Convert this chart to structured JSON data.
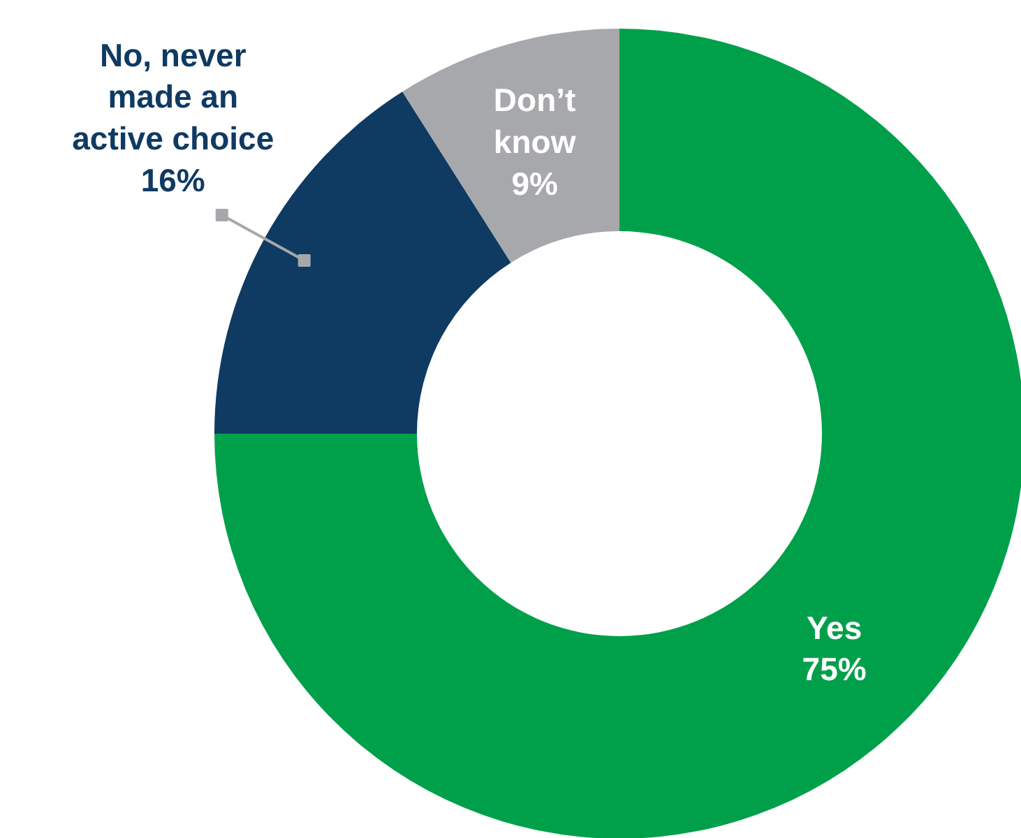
{
  "chart_data": {
    "type": "donut",
    "categories": [
      "Yes",
      "No, never made an active choice",
      "Don’t know"
    ],
    "values": [
      75,
      16,
      9
    ],
    "colors": [
      "#00a04b",
      "#0f3a62",
      "#a6a8ab"
    ],
    "value_labels": [
      "75%",
      "16%",
      "9%"
    ]
  }
}
